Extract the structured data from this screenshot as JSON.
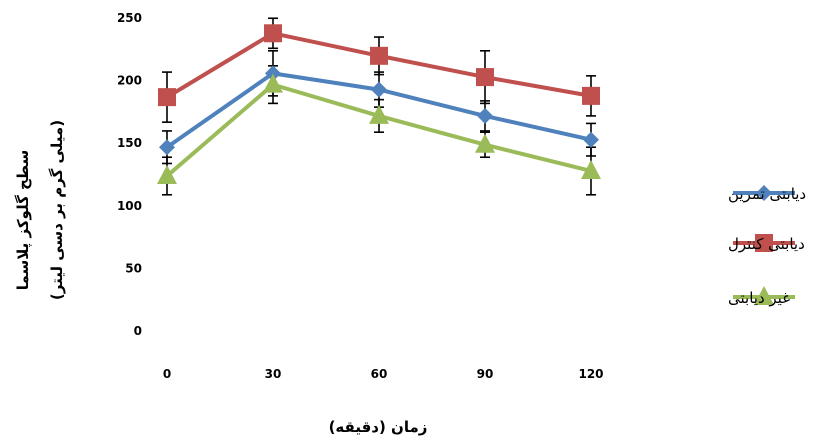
{
  "chart_data": {
    "type": "line",
    "x": [
      0,
      30,
      60,
      90,
      120
    ],
    "xlabels": [
      "0",
      "30",
      "60",
      "90",
      "120"
    ],
    "xlabel": "زمان (دقیقه)",
    "ylabel_line1": "سطح گلوکز پلاسما",
    "ylabel_line2": "(میلی گرم بر دسی لیتر)",
    "ylim": [
      0,
      250
    ],
    "yticks": [
      0,
      50,
      100,
      150,
      200,
      250
    ],
    "grid": false,
    "legend_position": "right",
    "series": [
      {
        "name": "دیابتی تمرین",
        "color": "#4F81BD",
        "marker": "diamond",
        "values": [
          146,
          205,
          192,
          171,
          152
        ],
        "errors": [
          13,
          18,
          14,
          12,
          13
        ]
      },
      {
        "name": "دیابتی کنترل",
        "color": "#C0504D",
        "marker": "square",
        "values": [
          186,
          237,
          219,
          202,
          187
        ],
        "errors": [
          20,
          12,
          15,
          21,
          16
        ]
      },
      {
        "name": "غیر دیابتی",
        "color": "#9BBB59",
        "marker": "triangle",
        "values": [
          123,
          196,
          171,
          148,
          127
        ],
        "errors": [
          15,
          15,
          13,
          10,
          19
        ]
      }
    ]
  }
}
